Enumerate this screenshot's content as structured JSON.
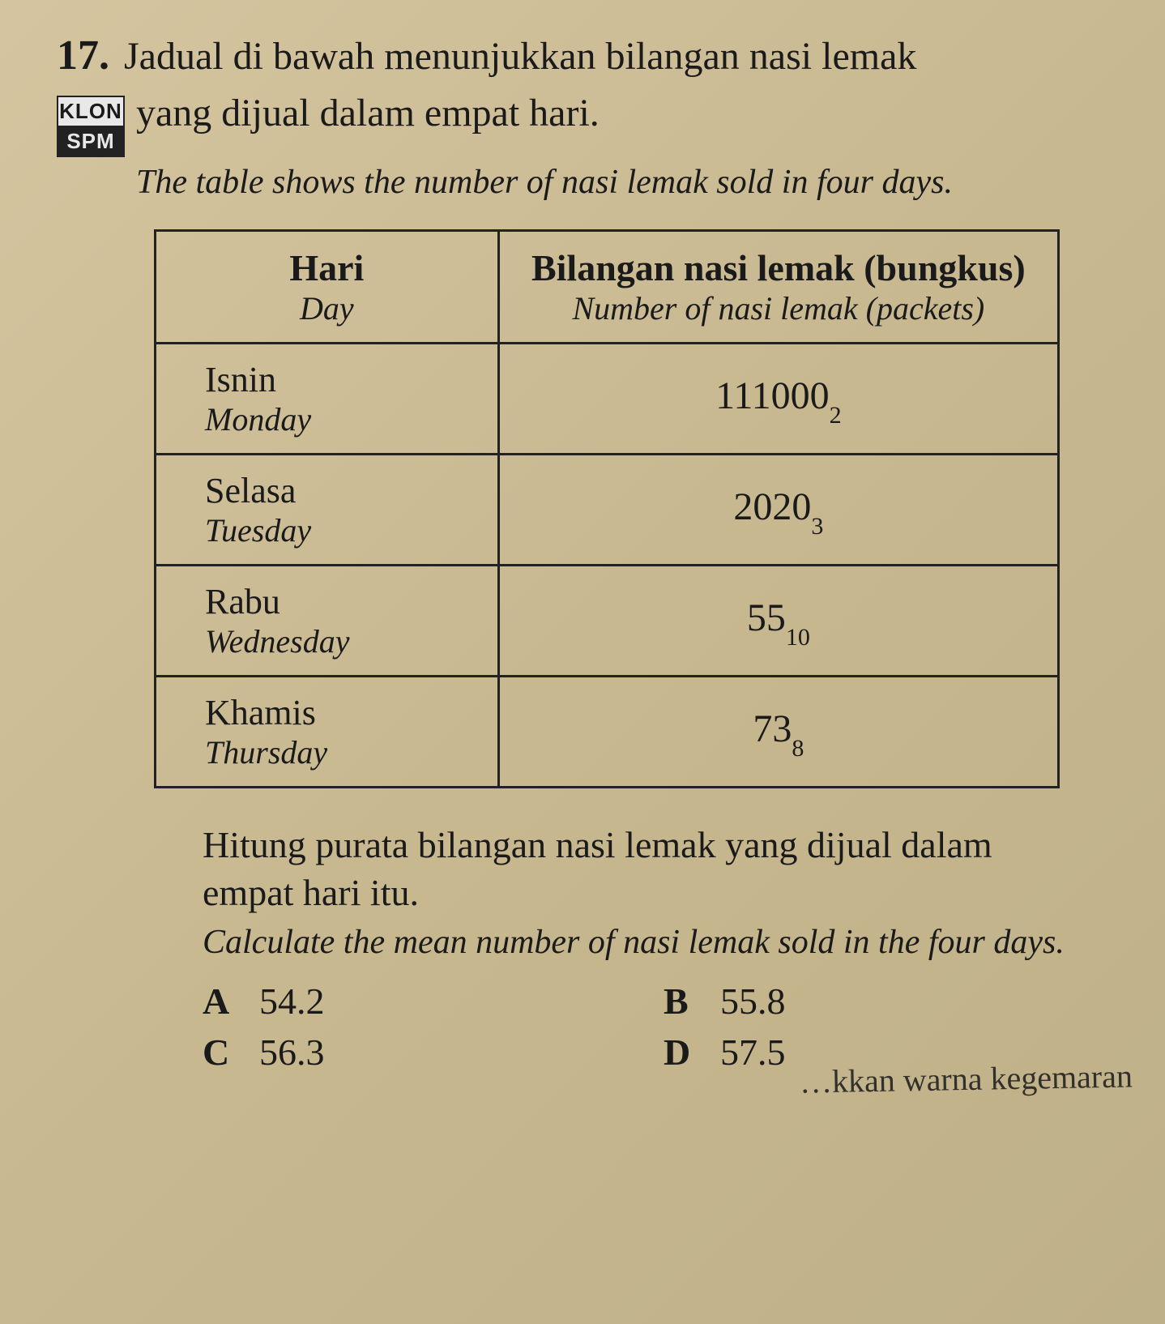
{
  "question": {
    "number": "17.",
    "badge_top": "KLON",
    "badge_bottom": "SPM",
    "line1": "Jadual di bawah menunjukkan bilangan nasi lemak",
    "line2": "yang dijual dalam empat hari.",
    "en": "The table shows the number of nasi lemak sold in four days."
  },
  "table": {
    "header_day_main": "Hari",
    "header_day_sub": "Day",
    "header_val_main": "Bilangan nasi lemak (bungkus)",
    "header_val_sub": "Number of nasi lemak (packets)",
    "rows": [
      {
        "day_main": "Isnin",
        "day_sub": "Monday",
        "val": "111000",
        "base": "2"
      },
      {
        "day_main": "Selasa",
        "day_sub": "Tuesday",
        "val": "2020",
        "base": "3"
      },
      {
        "day_main": "Rabu",
        "day_sub": "Wednesday",
        "val": "55",
        "base": "10"
      },
      {
        "day_main": "Khamis",
        "day_sub": "Thursday",
        "val": "73",
        "base": "8"
      }
    ]
  },
  "instruction": {
    "main": "Hitung purata bilangan nasi lemak yang dijual dalam empat hari itu.",
    "en": "Calculate the mean number of nasi lemak sold in the four days."
  },
  "choices": {
    "A": "54.2",
    "B": "55.8",
    "C": "56.3",
    "D": "57.5"
  },
  "cutoff_text": "…kkan warna kegemaran"
}
